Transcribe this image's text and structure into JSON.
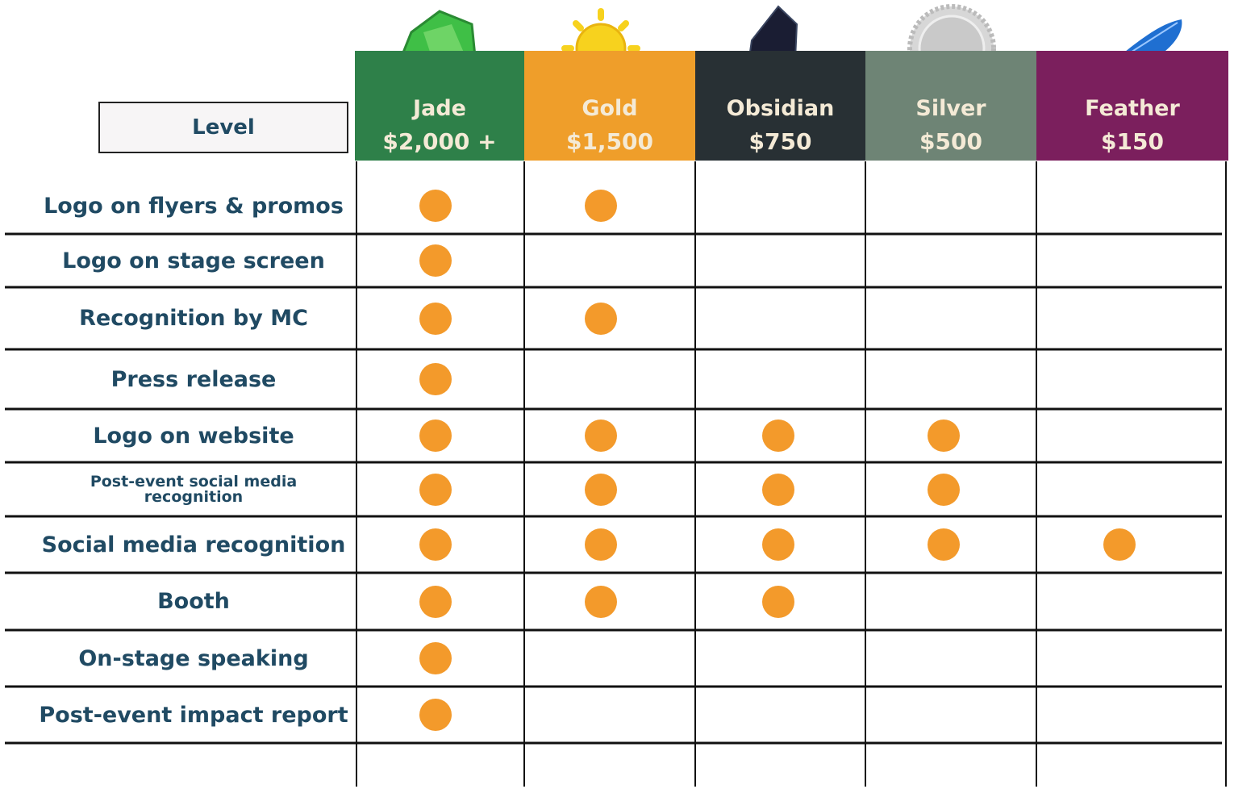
{
  "header": {
    "level_label": "Level"
  },
  "tiers": [
    {
      "name": "Jade",
      "price": "$2,000 +",
      "color": "#2e8049"
    },
    {
      "name": "Gold",
      "price": "$1,500",
      "color": "#ef9e2a"
    },
    {
      "name": "Obsidian",
      "price": "$750",
      "color": "#283034"
    },
    {
      "name": "Silver",
      "price": "$500",
      "color": "#6e8475"
    },
    {
      "name": "Feather",
      "price": "$150",
      "color": "#7b1f5d"
    }
  ],
  "rows": [
    {
      "label": "Logo on flyers & promos",
      "included": [
        true,
        true,
        false,
        false,
        false
      ]
    },
    {
      "label": "Logo on stage screen",
      "included": [
        true,
        false,
        false,
        false,
        false
      ]
    },
    {
      "label": "Recognition by MC",
      "included": [
        true,
        true,
        false,
        false,
        false
      ]
    },
    {
      "label": "Press release",
      "included": [
        true,
        false,
        false,
        false,
        false
      ]
    },
    {
      "label": "Logo on website",
      "included": [
        true,
        true,
        true,
        true,
        false
      ]
    },
    {
      "label": "Post-event social media recognition",
      "included": [
        true,
        true,
        true,
        true,
        false
      ]
    },
    {
      "label": "Social media recognition",
      "included": [
        true,
        true,
        true,
        true,
        true
      ]
    },
    {
      "label": "Booth",
      "included": [
        true,
        true,
        true,
        false,
        false
      ]
    },
    {
      "label": "On-stage speaking",
      "included": [
        true,
        false,
        false,
        false,
        false
      ]
    },
    {
      "label": "Post-event impact report",
      "included": [
        true,
        false,
        false,
        false,
        false
      ]
    }
  ],
  "dot_color": "#f39a2b"
}
